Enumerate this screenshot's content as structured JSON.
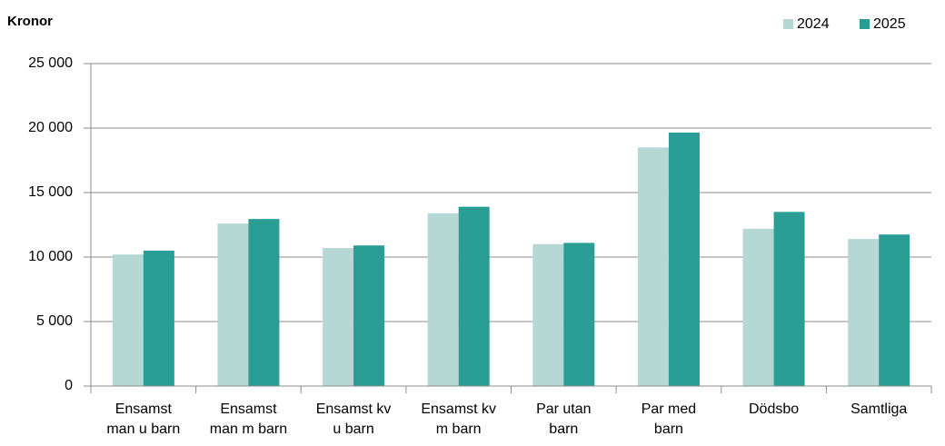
{
  "chart_data": {
    "type": "bar",
    "y_label": "Kronor",
    "categories": [
      "Ensamst man u barn",
      "Ensamst man m barn",
      "Ensamst kv u barn",
      "Ensamst kv m barn",
      "Par utan barn",
      "Par med barn",
      "Dödsbo",
      "Samtliga"
    ],
    "series": [
      {
        "name": "2024",
        "color": "#b5d8d5",
        "values": [
          10200,
          12600,
          10700,
          13400,
          11000,
          18500,
          12200,
          11400
        ]
      },
      {
        "name": "2025",
        "color": "#2a9d94",
        "values": [
          10500,
          12950,
          10900,
          13900,
          11100,
          19650,
          13500,
          11750
        ]
      }
    ],
    "ylim": [
      0,
      25000
    ],
    "yticks": [
      0,
      {
        "value": 5000,
        "label": "5 000"
      },
      {
        "value": 10000,
        "label": "10 000"
      },
      {
        "value": 15000,
        "label": "15 000"
      },
      {
        "value": 20000,
        "label": "20 000"
      },
      {
        "value": 25000,
        "label": "25 000"
      }
    ],
    "grid": true,
    "legend": "top-right"
  }
}
